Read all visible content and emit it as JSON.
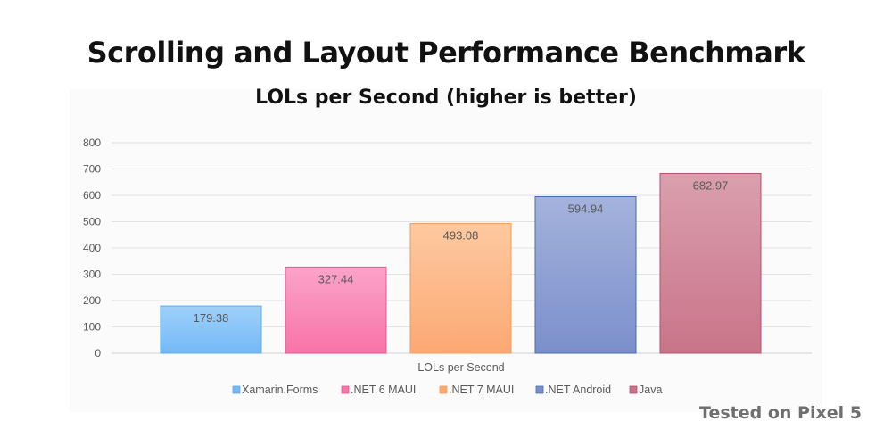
{
  "page": {
    "title": "Scrolling and Layout Performance Benchmark",
    "footer_note": "Tested on Pixel 5"
  },
  "chart_data": {
    "type": "bar",
    "title": "LOLs per Second (higher is better)",
    "xlabel": "LOLs per Second",
    "ylabel": "",
    "ylim": [
      0,
      800
    ],
    "yticks": [
      0,
      100,
      200,
      300,
      400,
      500,
      600,
      700,
      800
    ],
    "grid": true,
    "legend_position": "bottom",
    "categories": [
      "LOLs per Second"
    ],
    "series": [
      {
        "name": "Xamarin.Forms",
        "values": [
          179.38
        ],
        "label": "179.38",
        "color_top": "#9fd0fb",
        "color_bottom": "#74b9f6",
        "stroke": "#5fa8ea"
      },
      {
        "name": ".NET 6 MAUI",
        "values": [
          327.44
        ],
        "label": "327.44",
        "color_top": "#fba3c9",
        "color_bottom": "#f774a8",
        "stroke": "#e8558f"
      },
      {
        "name": ".NET 7 MAUI",
        "values": [
          493.08
        ],
        "label": "493.08",
        "color_top": "#fdc9a0",
        "color_bottom": "#fba974",
        "stroke": "#f39a5c"
      },
      {
        "name": ".NET Android",
        "values": [
          594.94
        ],
        "label": "594.94",
        "color_top": "#a4b3dc",
        "color_bottom": "#7b8fcb",
        "stroke": "#4a6bb3"
      },
      {
        "name": "Java",
        "values": [
          682.97
        ],
        "label": "682.97",
        "color_top": "#da9fae",
        "color_bottom": "#c97488",
        "stroke": "#b4506c"
      }
    ]
  }
}
